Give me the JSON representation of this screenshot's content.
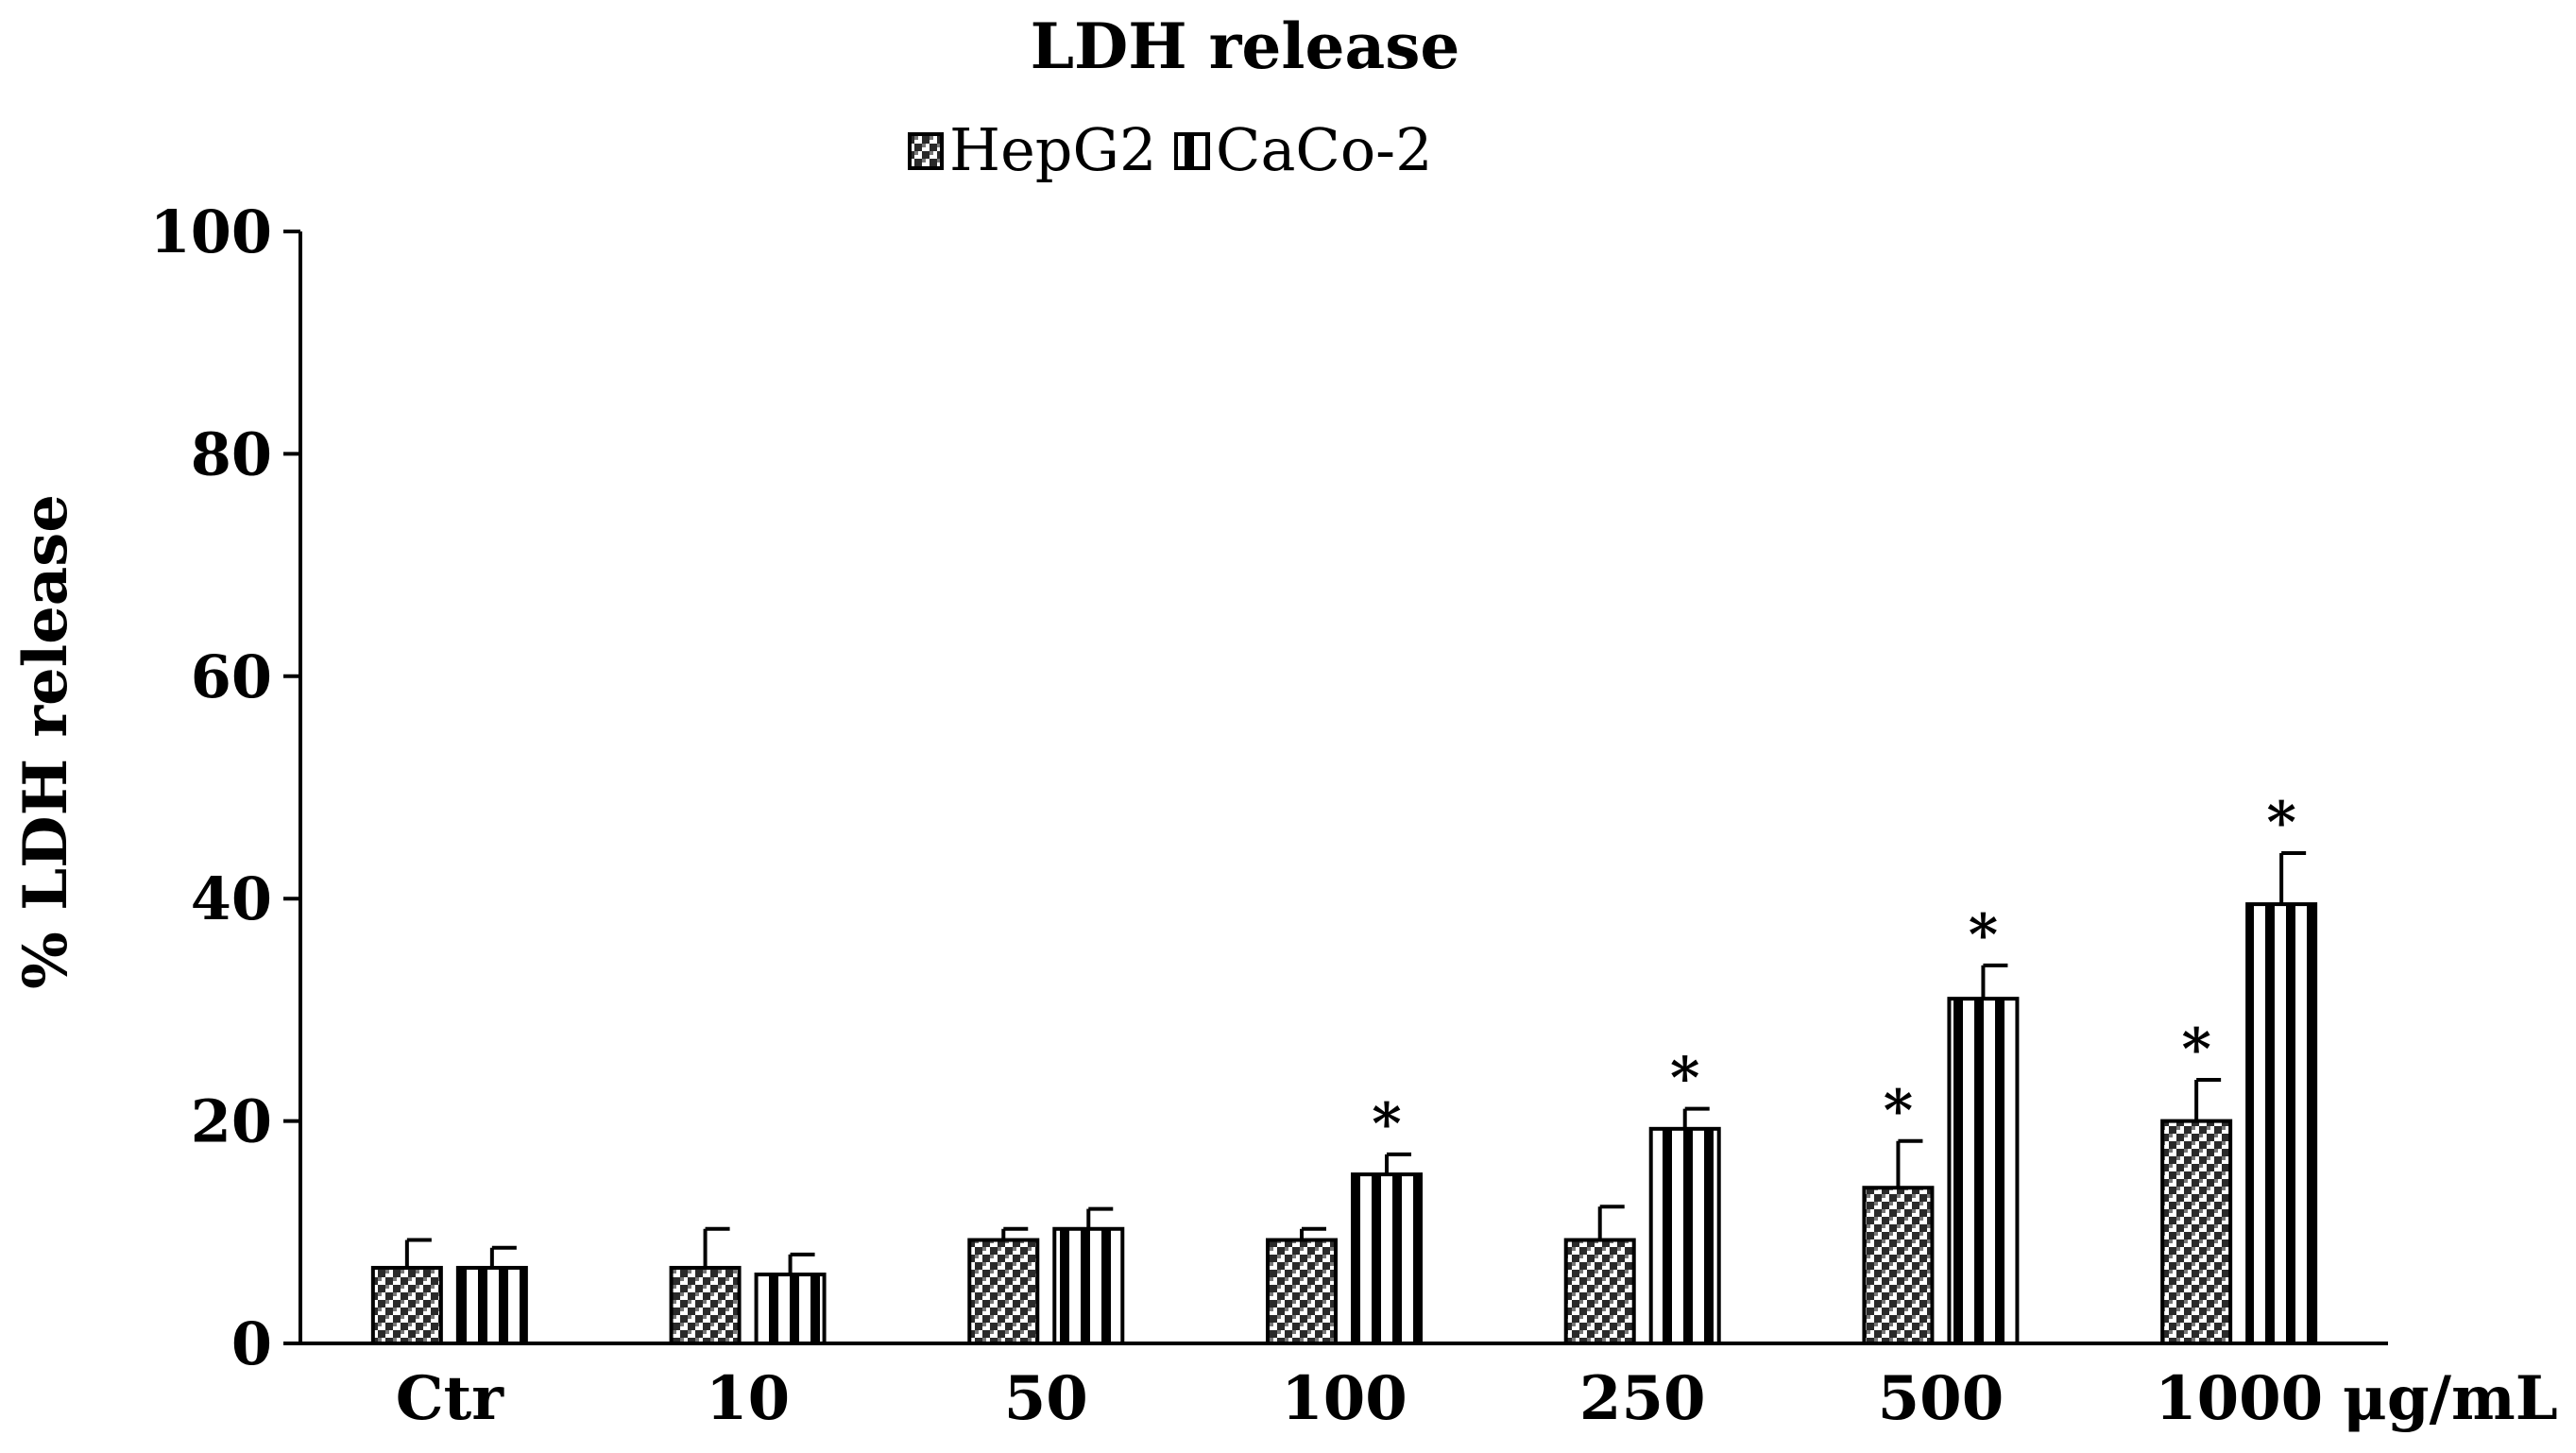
{
  "chart_data": {
    "type": "bar",
    "title": "LDH release",
    "ylabel": "% LDH release",
    "xlabel": "",
    "x_unit": "μg/mL",
    "ylim": [
      0,
      100
    ],
    "yticks": [
      "0",
      "20",
      "40",
      "60",
      "80",
      "100"
    ],
    "categories": [
      "Ctr",
      "10",
      "50",
      "100",
      "250",
      "500",
      "1000"
    ],
    "legend_position": "top-center",
    "grid": false,
    "series": [
      {
        "name": "HepG2",
        "pattern": "checker",
        "values": [
          6.8,
          6.8,
          9.3,
          9.3,
          9.3,
          14.0,
          20.0
        ],
        "errors": [
          2.5,
          3.5,
          1.0,
          1.0,
          3.0,
          4.2,
          3.7
        ],
        "significant": [
          false,
          false,
          false,
          false,
          false,
          true,
          true
        ]
      },
      {
        "name": "CaCo-2",
        "pattern": "vertical-stripes",
        "values": [
          6.8,
          6.2,
          10.3,
          15.2,
          19.3,
          31.0,
          39.5
        ],
        "errors": [
          1.8,
          1.8,
          1.8,
          1.8,
          1.8,
          3.0,
          4.6
        ],
        "significant": [
          false,
          false,
          false,
          true,
          true,
          true,
          true
        ]
      }
    ],
    "significance_marker": "*"
  }
}
